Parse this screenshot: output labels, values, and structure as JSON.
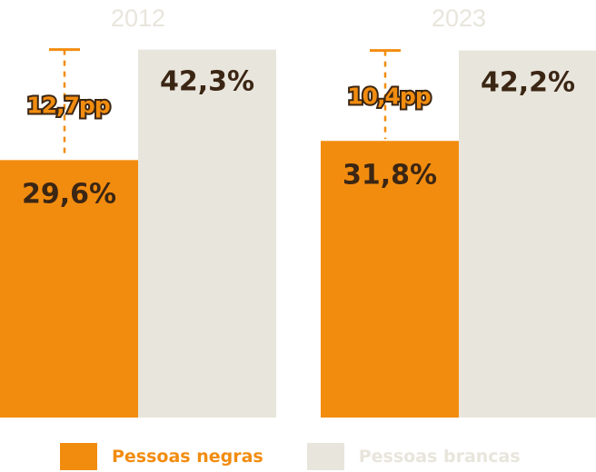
{
  "chart_data": {
    "type": "bar",
    "categories": [
      "2012",
      "2023"
    ],
    "series": [
      {
        "name": "Pessoas negras",
        "values": [
          29.6,
          31.8
        ],
        "labels": [
          "29,6%",
          "31,8%"
        ],
        "color": "#f28c0f"
      },
      {
        "name": "Pessoas brancas",
        "values": [
          42.3,
          42.2
        ],
        "labels": [
          "42,3%",
          "42,2%"
        ],
        "color": "#e8e5dc"
      }
    ],
    "gaps": [
      {
        "category": "2012",
        "value": 12.7,
        "label": "12,7pp"
      },
      {
        "category": "2023",
        "value": 10.4,
        "label": "10,4pp"
      }
    ],
    "ylim": [
      0,
      48
    ],
    "title": "",
    "xlabel": "",
    "ylabel": "",
    "grid": false,
    "legend_position": "bottom"
  },
  "colors": {
    "value_text": "#3b2614",
    "gap_line": "#f28c0f",
    "year_text": "#e8e5dc"
  },
  "legend": {
    "items": [
      {
        "label": "Pessoas negras",
        "text_color": "#f28c0f",
        "swatch_color": "#f28c0f"
      },
      {
        "label": "Pessoas brancas",
        "text_color": "#e8e5dc",
        "swatch_color": "#e8e5dc"
      }
    ]
  }
}
